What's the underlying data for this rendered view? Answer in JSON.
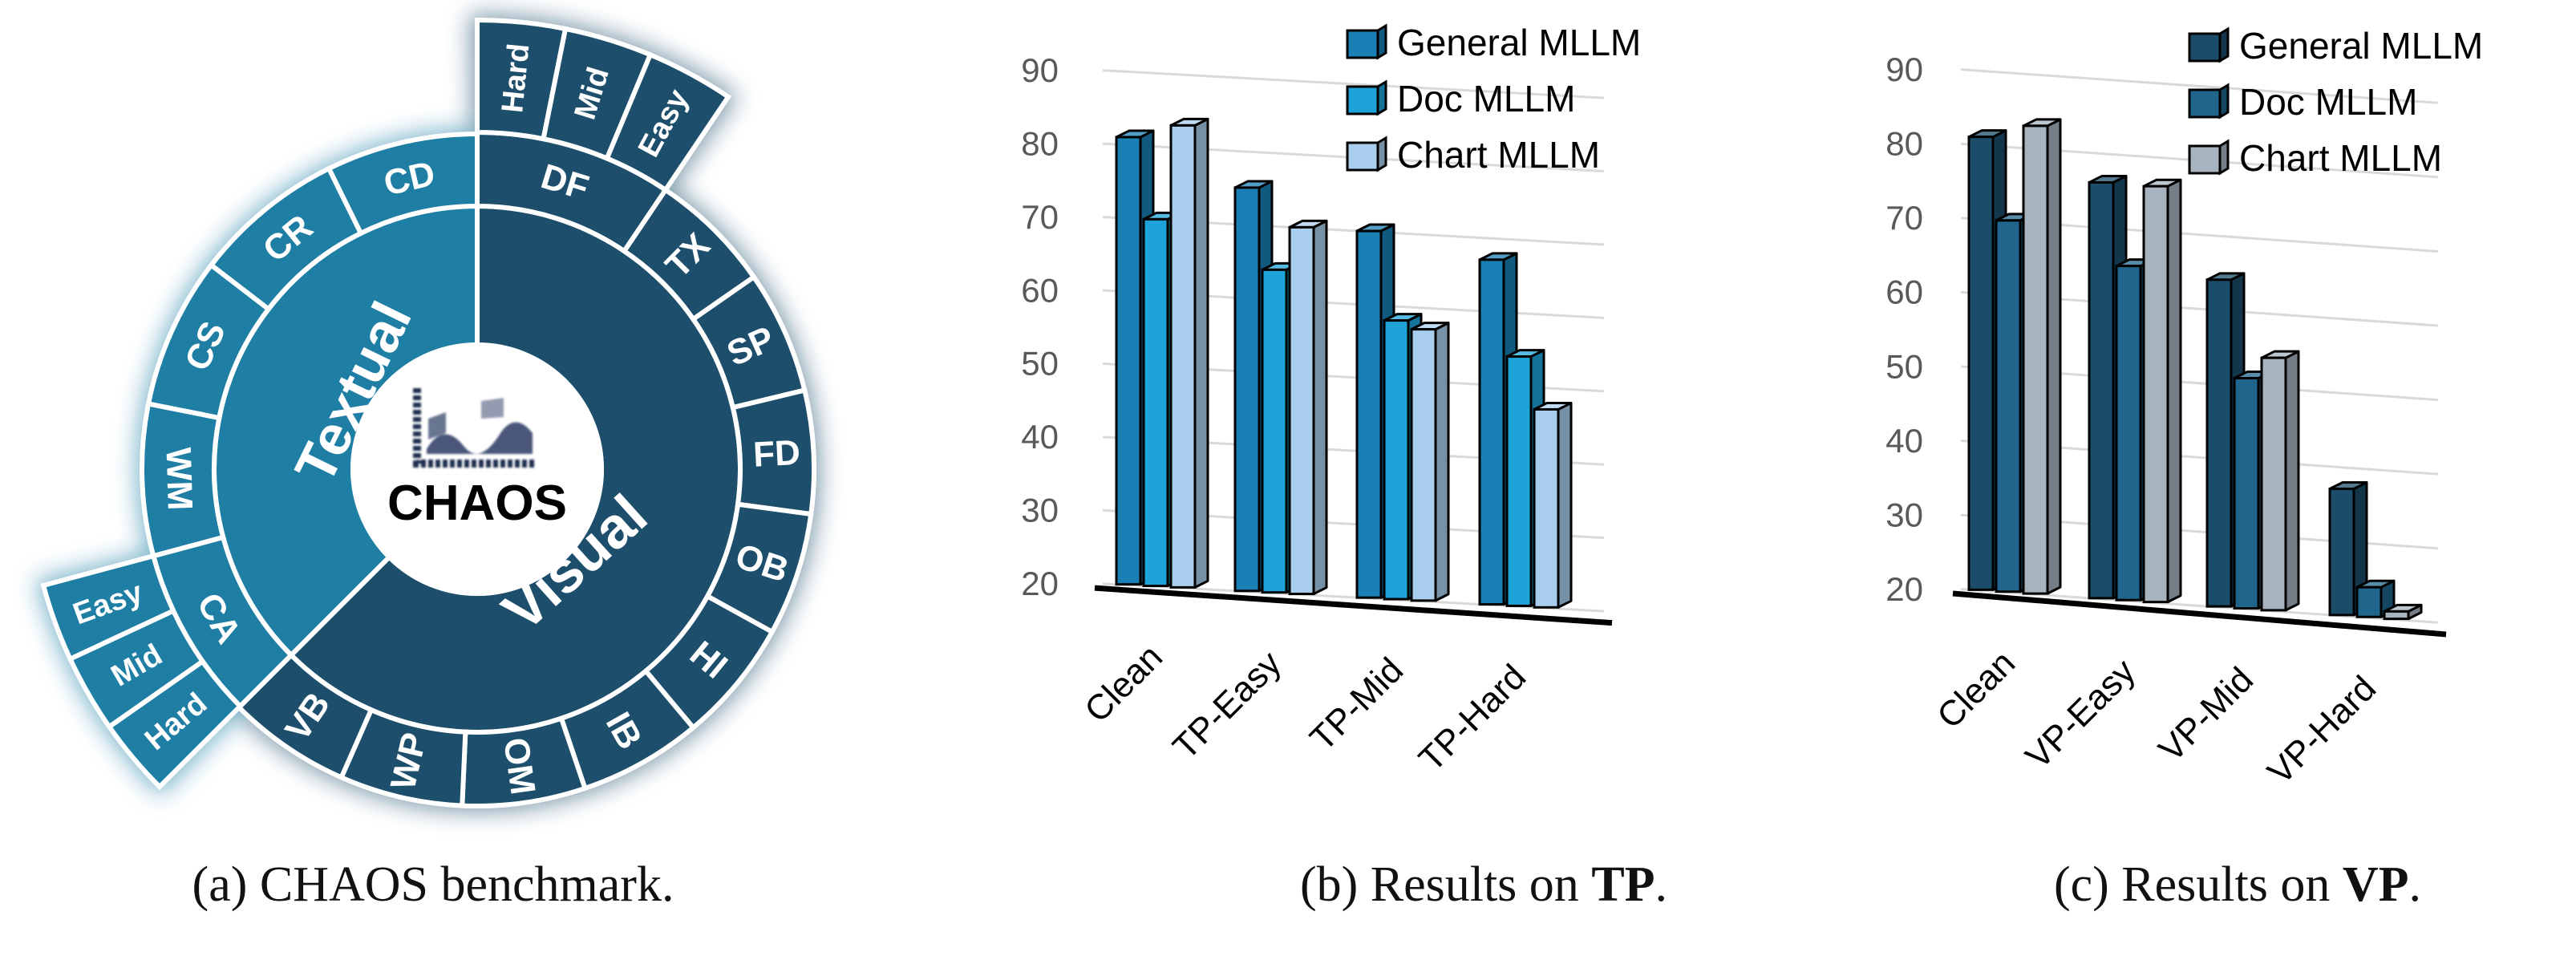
{
  "panels": {
    "a": {
      "center_label": "CHAOS",
      "textual_label": "Textual",
      "visual_label": "Visual",
      "textual_segments": [
        "CA",
        "WM",
        "CS",
        "CR",
        "CD"
      ],
      "visual_segments": [
        "DF",
        "TX",
        "SP",
        "FD",
        "OB",
        "HI",
        "IB",
        "OM",
        "WP",
        "VB"
      ],
      "df_levels": [
        "Hard",
        "Mid",
        "Easy"
      ],
      "ca_levels": [
        "Easy",
        "Mid",
        "Hard"
      ],
      "colors": {
        "textual": "#1f7ea4",
        "visual": "#1d4f6c"
      }
    },
    "captions": {
      "a": {
        "text": "(a) CHAOS benchmark."
      },
      "b": {
        "prefix": "(b) Results on ",
        "bold": "TP",
        "suffix": "."
      },
      "c": {
        "prefix": "(c) Results on ",
        "bold": "VP",
        "suffix": "."
      }
    }
  },
  "chart_data": [
    {
      "type": "bar",
      "title": "",
      "categories": [
        "Clean",
        "TP-Easy",
        "TP-Mid",
        "TP-Hard"
      ],
      "ylim": [
        20,
        90
      ],
      "yticks": [
        20,
        30,
        40,
        50,
        60,
        70,
        80,
        90
      ],
      "grid": true,
      "legend": "top-right",
      "series": [
        {
          "name": "General MLLM",
          "values": [
            81,
            75,
            70,
            67
          ],
          "color": "#1a7fb5"
        },
        {
          "name": "Doc MLLM",
          "values": [
            70,
            64,
            58,
            54
          ],
          "color": "#1ea3d9"
        },
        {
          "name": "Chart MLLM",
          "values": [
            83,
            70,
            57,
            47
          ],
          "color": "#a9cdec"
        }
      ]
    },
    {
      "type": "bar",
      "title": "",
      "categories": [
        "Clean",
        "VP-Easy",
        "VP-Mid",
        "VP-Hard"
      ],
      "ylim": [
        20,
        90
      ],
      "yticks": [
        20,
        30,
        40,
        50,
        60,
        70,
        80,
        90
      ],
      "grid": true,
      "legend": "top-right",
      "series": [
        {
          "name": "General MLLM",
          "values": [
            81,
            76,
            64,
            37
          ],
          "color": "#1b4d6b"
        },
        {
          "name": "Doc MLLM",
          "values": [
            70,
            65,
            51,
            24
          ],
          "color": "#20658c"
        },
        {
          "name": "Chart MLLM",
          "values": [
            83,
            76,
            54,
            21
          ],
          "color": "#a7b4bf"
        }
      ]
    }
  ]
}
